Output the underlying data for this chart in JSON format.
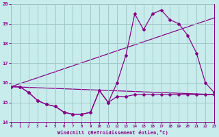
{
  "background_color": "#c8ecec",
  "grid_color": "#a0c8c8",
  "line_color": "#880088",
  "xlabel": "Windchill (Refroidissement éolien,°C)",
  "ylim": [
    14,
    20
  ],
  "xlim": [
    0,
    23
  ],
  "yticks": [
    14,
    15,
    16,
    17,
    18,
    19,
    20
  ],
  "xticks": [
    0,
    1,
    2,
    3,
    4,
    5,
    6,
    7,
    8,
    9,
    10,
    11,
    12,
    13,
    14,
    15,
    16,
    17,
    18,
    19,
    20,
    21,
    22,
    23
  ],
  "series_marked_1": {
    "x": [
      0,
      1,
      2,
      3,
      4,
      5,
      6,
      7,
      8,
      9,
      10,
      11,
      12,
      13,
      14,
      15,
      16,
      17,
      18,
      19,
      20,
      21,
      22,
      23
    ],
    "y": [
      15.8,
      15.8,
      15.5,
      15.1,
      14.9,
      14.8,
      14.5,
      14.4,
      14.4,
      14.5,
      15.6,
      15.0,
      15.3,
      15.3,
      15.4,
      15.4,
      15.4,
      15.4,
      15.4,
      15.4,
      15.4,
      15.4,
      15.4,
      15.4
    ]
  },
  "series_marked_2": {
    "x": [
      0,
      1,
      2,
      3,
      4,
      5,
      6,
      7,
      8,
      9,
      10,
      11,
      12,
      13,
      14,
      15,
      16,
      17,
      18,
      19,
      20,
      21,
      22,
      23
    ],
    "y": [
      15.8,
      15.8,
      15.5,
      15.1,
      14.9,
      14.8,
      14.5,
      14.4,
      14.4,
      14.5,
      15.6,
      15.0,
      16.0,
      17.4,
      19.5,
      18.7,
      19.5,
      19.7,
      19.2,
      19.0,
      18.4,
      17.5,
      16.0,
      15.5
    ]
  },
  "trend_lower": {
    "x": [
      0,
      23
    ],
    "y": [
      15.8,
      15.4
    ]
  },
  "trend_upper": {
    "x": [
      0,
      23
    ],
    "y": [
      15.8,
      19.3
    ]
  }
}
